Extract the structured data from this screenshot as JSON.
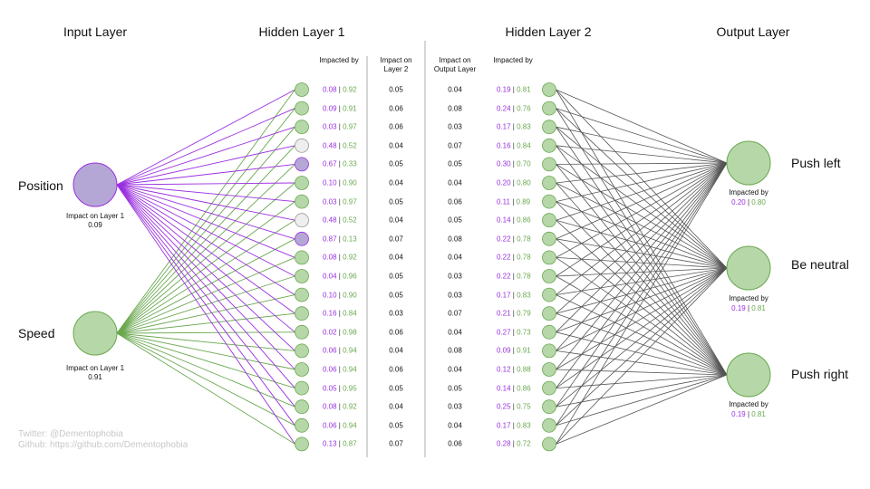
{
  "headers": {
    "input": "Input Layer",
    "hidden1": "Hidden Layer 1",
    "hidden2": "Hidden Layer 2",
    "output": "Output Layer"
  },
  "subheaders": {
    "h1_impacted_by": "Impacted by",
    "h1_impact_on": "Impact on Layer 2",
    "h2_impact_on": "Impact on Output Layer",
    "h2_impacted_by": "Impacted by"
  },
  "inputs": [
    {
      "label": "Position",
      "impact_label": "Impact on Layer 1",
      "impact": "0.09"
    },
    {
      "label": "Speed",
      "impact_label": "Impact on Layer 1",
      "impact": "0.91"
    }
  ],
  "hidden1": [
    {
      "p": "0.08",
      "g": "0.92",
      "impact": "0.05",
      "state": "green"
    },
    {
      "p": "0.09",
      "g": "0.91",
      "impact": "0.06",
      "state": "green"
    },
    {
      "p": "0.03",
      "g": "0.97",
      "impact": "0.06",
      "state": "green"
    },
    {
      "p": "0.48",
      "g": "0.52",
      "impact": "0.04",
      "state": "gray"
    },
    {
      "p": "0.67",
      "g": "0.33",
      "impact": "0.05",
      "state": "purple"
    },
    {
      "p": "0.10",
      "g": "0.90",
      "impact": "0.04",
      "state": "green"
    },
    {
      "p": "0.03",
      "g": "0.97",
      "impact": "0.05",
      "state": "green"
    },
    {
      "p": "0.48",
      "g": "0.52",
      "impact": "0.04",
      "state": "gray"
    },
    {
      "p": "0.87",
      "g": "0.13",
      "impact": "0.07",
      "state": "purple"
    },
    {
      "p": "0.08",
      "g": "0.92",
      "impact": "0.04",
      "state": "green"
    },
    {
      "p": "0.04",
      "g": "0.96",
      "impact": "0.05",
      "state": "green"
    },
    {
      "p": "0.10",
      "g": "0.90",
      "impact": "0.05",
      "state": "green"
    },
    {
      "p": "0.16",
      "g": "0.84",
      "impact": "0.03",
      "state": "green"
    },
    {
      "p": "0.02",
      "g": "0.98",
      "impact": "0.06",
      "state": "green"
    },
    {
      "p": "0.06",
      "g": "0.94",
      "impact": "0.04",
      "state": "green"
    },
    {
      "p": "0.06",
      "g": "0.94",
      "impact": "0.06",
      "state": "green"
    },
    {
      "p": "0.05",
      "g": "0.95",
      "impact": "0.05",
      "state": "green"
    },
    {
      "p": "0.08",
      "g": "0.92",
      "impact": "0.04",
      "state": "green"
    },
    {
      "p": "0.06",
      "g": "0.94",
      "impact": "0.05",
      "state": "green"
    },
    {
      "p": "0.13",
      "g": "0.87",
      "impact": "0.07",
      "state": "green"
    }
  ],
  "hidden2": [
    {
      "impact": "0.04",
      "p": "0.19",
      "g": "0.81"
    },
    {
      "impact": "0.08",
      "p": "0.24",
      "g": "0.76"
    },
    {
      "impact": "0.03",
      "p": "0.17",
      "g": "0.83"
    },
    {
      "impact": "0.07",
      "p": "0.16",
      "g": "0.84"
    },
    {
      "impact": "0.05",
      "p": "0.30",
      "g": "0.70"
    },
    {
      "impact": "0.04",
      "p": "0.20",
      "g": "0.80"
    },
    {
      "impact": "0.06",
      "p": "0.11",
      "g": "0.89"
    },
    {
      "impact": "0.05",
      "p": "0.14",
      "g": "0.86"
    },
    {
      "impact": "0.08",
      "p": "0.22",
      "g": "0.78"
    },
    {
      "impact": "0.04",
      "p": "0.22",
      "g": "0.78"
    },
    {
      "impact": "0.03",
      "p": "0.22",
      "g": "0.78"
    },
    {
      "impact": "0.03",
      "p": "0.17",
      "g": "0.83"
    },
    {
      "impact": "0.07",
      "p": "0.21",
      "g": "0.79"
    },
    {
      "impact": "0.04",
      "p": "0.27",
      "g": "0.73"
    },
    {
      "impact": "0.08",
      "p": "0.09",
      "g": "0.91"
    },
    {
      "impact": "0.04",
      "p": "0.12",
      "g": "0.88"
    },
    {
      "impact": "0.05",
      "p": "0.14",
      "g": "0.86"
    },
    {
      "impact": "0.03",
      "p": "0.25",
      "g": "0.75"
    },
    {
      "impact": "0.04",
      "p": "0.17",
      "g": "0.83"
    },
    {
      "impact": "0.06",
      "p": "0.28",
      "g": "0.72"
    }
  ],
  "outputs": [
    {
      "label": "Push left",
      "impact_label": "Impacted by",
      "p": "0.20",
      "g": "0.80"
    },
    {
      "label": "Be neutral",
      "impact_label": "Impacted by",
      "p": "0.19",
      "g": "0.81"
    },
    {
      "label": "Push right",
      "impact_label": "Impacted by",
      "p": "0.19",
      "g": "0.81"
    }
  ],
  "footer": {
    "twitter": "Twitter: @Dementophobia",
    "github": "Github: https://github.com/Dementophobia"
  },
  "colors": {
    "purple": "#9b30e0",
    "green": "#6aa84f",
    "node_green_fill": "#b6d7a8",
    "node_green_stroke": "#6aa84f",
    "node_purple_fill": "#b4a7d6",
    "node_purple_stroke": "#9b30e0",
    "node_gray_fill": "#eeeeee",
    "node_gray_stroke": "#999999",
    "edge_dark": "#555555",
    "divider": "#999999"
  }
}
